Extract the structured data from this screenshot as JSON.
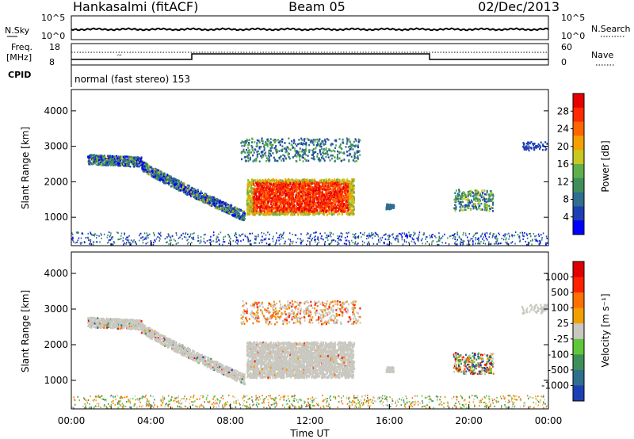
{
  "header": {
    "station": "Hankasalmi (fitACF)",
    "beam": "Beam 05",
    "date": "02/Dec/2013"
  },
  "top_panels": {
    "nsky_label": "N.Sky",
    "nsky_ticks": [
      "10^5",
      "10^0"
    ],
    "nsearch_label": "N.Search",
    "nsearch_ticks": [
      "10^5",
      "10^0"
    ],
    "freq_label": "Freq.",
    "freq_unit": "[MHz]",
    "freq_ticks": [
      "18",
      "8"
    ],
    "nave_label": "Nave",
    "nave_ticks": [
      "60",
      "0"
    ],
    "cpid_label": "CPID",
    "cpid_value": "normal (fast stereo) 153"
  },
  "chart_data": [
    {
      "type": "heatmap",
      "name": "power",
      "ylabel": "Slant Range [km]",
      "xlabel": "",
      "x_range_hours": [
        0,
        24
      ],
      "ylim": [
        200,
        4600
      ],
      "yticks": [
        "4000",
        "3000",
        "2000",
        "1000"
      ],
      "yticks_values": [
        4000,
        3000,
        2000,
        1000
      ],
      "colorbar": {
        "label": "Power [dB]",
        "ticks": [
          "28",
          "24",
          "20",
          "16",
          "12",
          "8",
          "4"
        ],
        "tick_values": [
          28,
          24,
          20,
          16,
          12,
          8,
          4
        ],
        "range": [
          0,
          30
        ],
        "colors": [
          "#0000ff",
          "#1e3fb4",
          "#2e6e8e",
          "#3f8f5a",
          "#5fb04a",
          "#c8c81e",
          "#f5a000",
          "#ff6600",
          "#ff2a00",
          "#e60000"
        ]
      },
      "echo_regions": [
        {
          "label": "high-range arc",
          "t": [
            0.8,
            8.7
          ],
          "r_start": [
            2700,
            1000
          ],
          "value_level": "weak-moderate"
        },
        {
          "label": "main echo block",
          "t": [
            8.8,
            14.2
          ],
          "r": [
            1100,
            2100
          ],
          "value_level": "strong 20-30 dB"
        },
        {
          "label": "far range band",
          "t": [
            8.5,
            14.5
          ],
          "r": [
            2700,
            3200
          ],
          "value_level": "weak"
        },
        {
          "label": "evening patch",
          "t": [
            19.2,
            21.2
          ],
          "r": [
            1200,
            1800
          ],
          "value_level": "moderate"
        },
        {
          "label": "near-range clutter",
          "t": [
            0,
            24
          ],
          "r": [
            200,
            500
          ],
          "value_level": "weak"
        }
      ]
    },
    {
      "type": "heatmap",
      "name": "velocity",
      "ylabel": "Slant Range [km]",
      "xlabel": "Time UT",
      "x_range_hours": [
        0,
        24
      ],
      "xticks": [
        "00:00",
        "04:00",
        "08:00",
        "12:00",
        "16:00",
        "20:00",
        "00:00"
      ],
      "xticks_values": [
        0,
        4,
        8,
        12,
        16,
        20,
        24
      ],
      "ylim": [
        200,
        4600
      ],
      "yticks": [
        "4000",
        "3000",
        "2000",
        "1000"
      ],
      "yticks_values": [
        4000,
        3000,
        2000,
        1000
      ],
      "colorbar": {
        "label": "Velocity [m s⁻¹]",
        "ticks": [
          "1000",
          "500",
          "100",
          "25",
          "-25",
          "-100",
          "-500",
          "-1000"
        ],
        "tick_values": [
          1000,
          500,
          100,
          25,
          -25,
          -100,
          -500,
          -1000
        ],
        "colors": [
          "#1e3fb4",
          "#2e6e8e",
          "#3f8f5a",
          "#5fc83a",
          "#c8c8c0",
          "#f0a000",
          "#ff7000",
          "#ff2000",
          "#e00000"
        ]
      },
      "echo_regions": [
        {
          "label": "ground scatter arc",
          "t": [
            0.8,
            8.7
          ],
          "r_start": [
            2600,
            1000
          ],
          "value_level": "near zero (grey)"
        },
        {
          "label": "main block",
          "t": [
            8.8,
            14.2
          ],
          "r": [
            1100,
            2100
          ],
          "value_level": "near zero (grey)"
        },
        {
          "label": "far range band",
          "t": [
            8.5,
            14.5
          ],
          "r": [
            2800,
            3200
          ],
          "value_level": "-100 to -500 (orange)"
        },
        {
          "label": "evening patch",
          "t": [
            19.2,
            21.2
          ],
          "r": [
            1200,
            1800
          ],
          "value_level": "mixed"
        }
      ]
    }
  ],
  "colors": {
    "axis": "#000000",
    "background": "#ffffff"
  }
}
